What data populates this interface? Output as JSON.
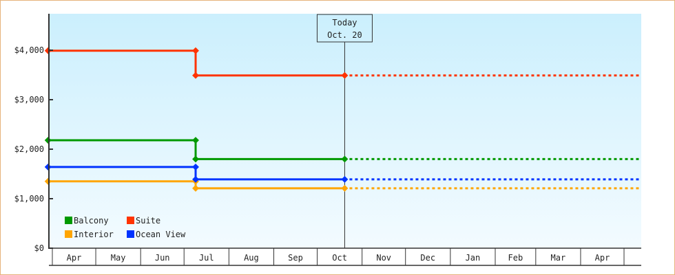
{
  "chart_data": {
    "type": "line",
    "step": true,
    "title": "",
    "xlabel": "",
    "ylabel": "",
    "ylim": [
      0,
      4700
    ],
    "y_ticks": [
      0,
      1000,
      2000,
      3000,
      4000
    ],
    "y_tick_labels": [
      "$0",
      "$1,000",
      "$2,000",
      "$3,000",
      "$4,000"
    ],
    "x_tick_labels": [
      "Apr",
      "May",
      "Jun",
      "Jul",
      "Aug",
      "Sep",
      "Oct",
      "Nov",
      "Dec",
      "Jan",
      "Feb",
      "Mar",
      "Apr"
    ],
    "x_range": [
      "Mar 29",
      "May 12"
    ],
    "grid": false,
    "legend_placement": "bottom-left",
    "today_marker": {
      "line1": "Today",
      "line2": "Oct. 20",
      "date": "Oct 20"
    },
    "background_gradient": [
      "#cbeffd",
      "#f3fbff"
    ],
    "series": [
      {
        "name": "Balcony",
        "color": "#009900",
        "points": [
          {
            "x": "Mar 29",
            "y": 2180
          },
          {
            "x": "Jul 9",
            "y": 2180
          },
          {
            "x": "Jul 9",
            "y": 1800
          },
          {
            "x": "Oct 20",
            "y": 1800
          }
        ],
        "projection": {
          "to": "May 12",
          "y": 1800
        }
      },
      {
        "name": "Suite",
        "color": "#ff3300",
        "points": [
          {
            "x": "Mar 29",
            "y": 3990
          },
          {
            "x": "Jul 9",
            "y": 3990
          },
          {
            "x": "Jul 9",
            "y": 3490
          },
          {
            "x": "Oct 20",
            "y": 3490
          }
        ],
        "projection": {
          "to": "May 12",
          "y": 3490
        }
      },
      {
        "name": "Interior",
        "color": "#ffa500",
        "points": [
          {
            "x": "Mar 29",
            "y": 1350
          },
          {
            "x": "Jul 9",
            "y": 1350
          },
          {
            "x": "Jul 9",
            "y": 1210
          },
          {
            "x": "Oct 20",
            "y": 1210
          }
        ],
        "projection": {
          "to": "May 12",
          "y": 1210
        }
      },
      {
        "name": "Ocean View",
        "color": "#0033ff",
        "points": [
          {
            "x": "Mar 29",
            "y": 1640
          },
          {
            "x": "Jul 9",
            "y": 1640
          },
          {
            "x": "Jul 9",
            "y": 1390
          },
          {
            "x": "Oct 20",
            "y": 1390
          }
        ],
        "projection": {
          "to": "May 12",
          "y": 1390
        }
      }
    ]
  }
}
